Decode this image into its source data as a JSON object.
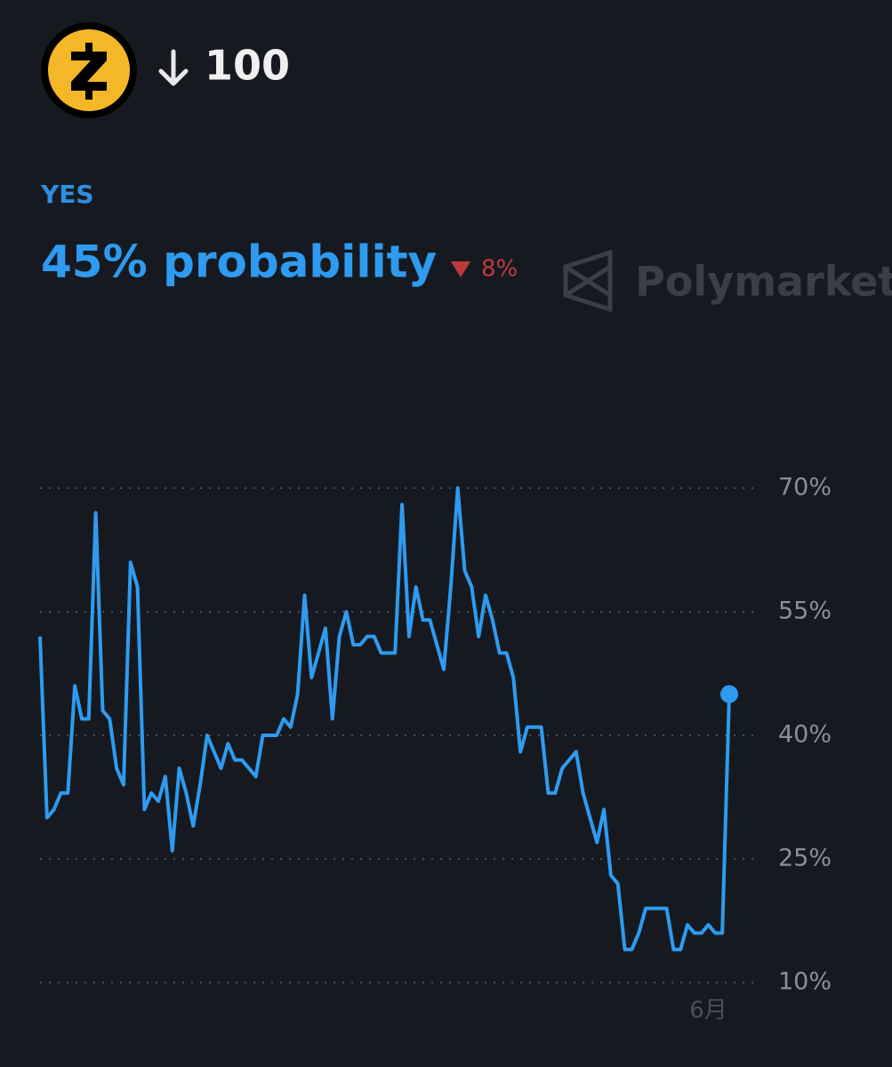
{
  "chart_data": {
    "type": "line",
    "title": "100",
    "annotations": [
      "45% probability",
      "8%"
    ],
    "watermark": "Polymarket",
    "categories": [
      null,
      null,
      null,
      null,
      null,
      null,
      null,
      null,
      null,
      null,
      null,
      null,
      null,
      null,
      null,
      null,
      null,
      null,
      null,
      null,
      null,
      null,
      null,
      null,
      null,
      null,
      null,
      null,
      null,
      null,
      null,
      null,
      null,
      null,
      null,
      null,
      null,
      null,
      null,
      null,
      null,
      null,
      null,
      null,
      null,
      null,
      null,
      null,
      null,
      null,
      null,
      null,
      null,
      null,
      null,
      null,
      null,
      null,
      null,
      null,
      null,
      null,
      null,
      null,
      null,
      null,
      null,
      null,
      null,
      null,
      null,
      null,
      null,
      null,
      null,
      null,
      null,
      null,
      null,
      null,
      null,
      null,
      null,
      null,
      null,
      null,
      null,
      null,
      null,
      null,
      null,
      null,
      null,
      null,
      null,
      null,
      "6月",
      null,
      null,
      null
    ],
    "series": [
      {
        "name": "YES",
        "color": "#2e9bf0",
        "values": [
          52,
          30,
          31,
          33,
          33,
          46,
          42,
          42,
          67,
          43,
          42,
          36,
          34,
          61,
          58,
          31,
          33,
          32,
          35,
          26,
          36,
          33,
          29,
          34,
          40,
          38,
          36,
          39,
          37,
          37,
          36,
          35,
          40,
          40,
          40,
          42,
          41,
          45,
          57,
          47,
          50,
          53,
          42,
          52,
          55,
          51,
          51,
          52,
          52,
          50,
          50,
          50,
          68,
          52,
          58,
          54,
          54,
          51,
          48,
          58,
          70,
          60,
          58,
          52,
          57,
          54,
          50,
          50,
          47,
          38,
          41,
          41,
          41,
          33,
          33,
          36,
          37,
          38,
          33,
          30,
          27,
          31,
          23,
          22,
          14,
          14,
          16,
          19,
          19,
          19,
          19,
          14,
          14,
          17,
          16,
          16,
          17,
          16,
          16,
          45
        ]
      }
    ],
    "ylim": [
      10,
      70
    ],
    "yticks": [
      {
        "value": 10,
        "label": "10%"
      },
      {
        "value": 25,
        "label": "25%"
      },
      {
        "value": 40,
        "label": "40%"
      },
      {
        "value": 55,
        "label": "55%"
      },
      {
        "value": 70,
        "label": "70%"
      }
    ],
    "grid": true,
    "down_color": "#c0393f"
  }
}
